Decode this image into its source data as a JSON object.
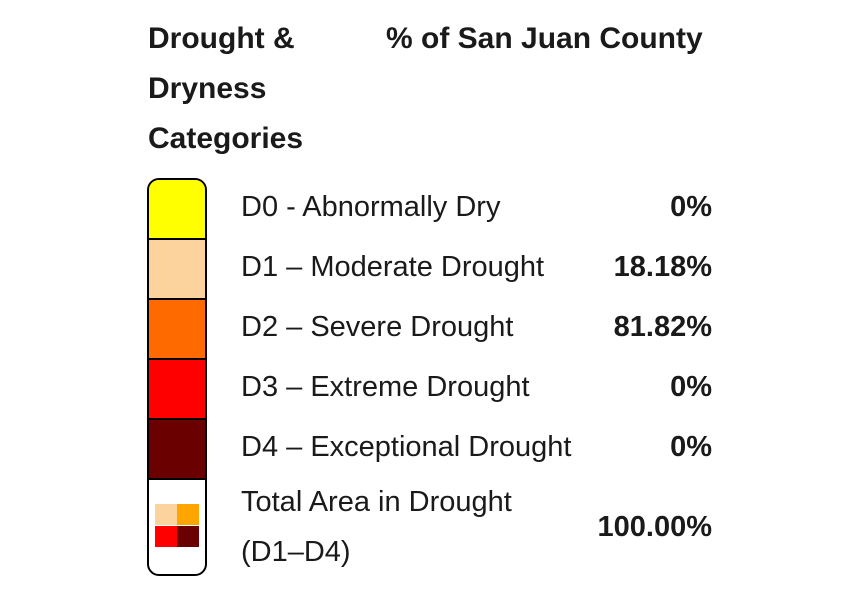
{
  "header": {
    "category_title": "Drought & Dryness Categories",
    "area_title": "% of San Juan County"
  },
  "rows": [
    {
      "label": "D0 - Abnormally Dry",
      "value": "0%",
      "color": "#ffff00"
    },
    {
      "label": "D1 – Moderate Drought",
      "value": "18.18%",
      "color": "#fcd39c"
    },
    {
      "label": "D2 – Severe Drought",
      "value": "81.82%",
      "color": "#ff6a00"
    },
    {
      "label": "D3 – Extreme Drought",
      "value": "0%",
      "color": "#ff0000"
    },
    {
      "label": "D4 – Exceptional Drought",
      "value": "0%",
      "color": "#6b0000"
    }
  ],
  "total": {
    "label": "Total Area in Drought (D1–D4)",
    "value": "100.00%",
    "icon": "drought-mini-grid-icon",
    "icon_colors": [
      "#fcd39c",
      "#ffa500",
      "#ff0000",
      "#6b0000"
    ]
  }
}
